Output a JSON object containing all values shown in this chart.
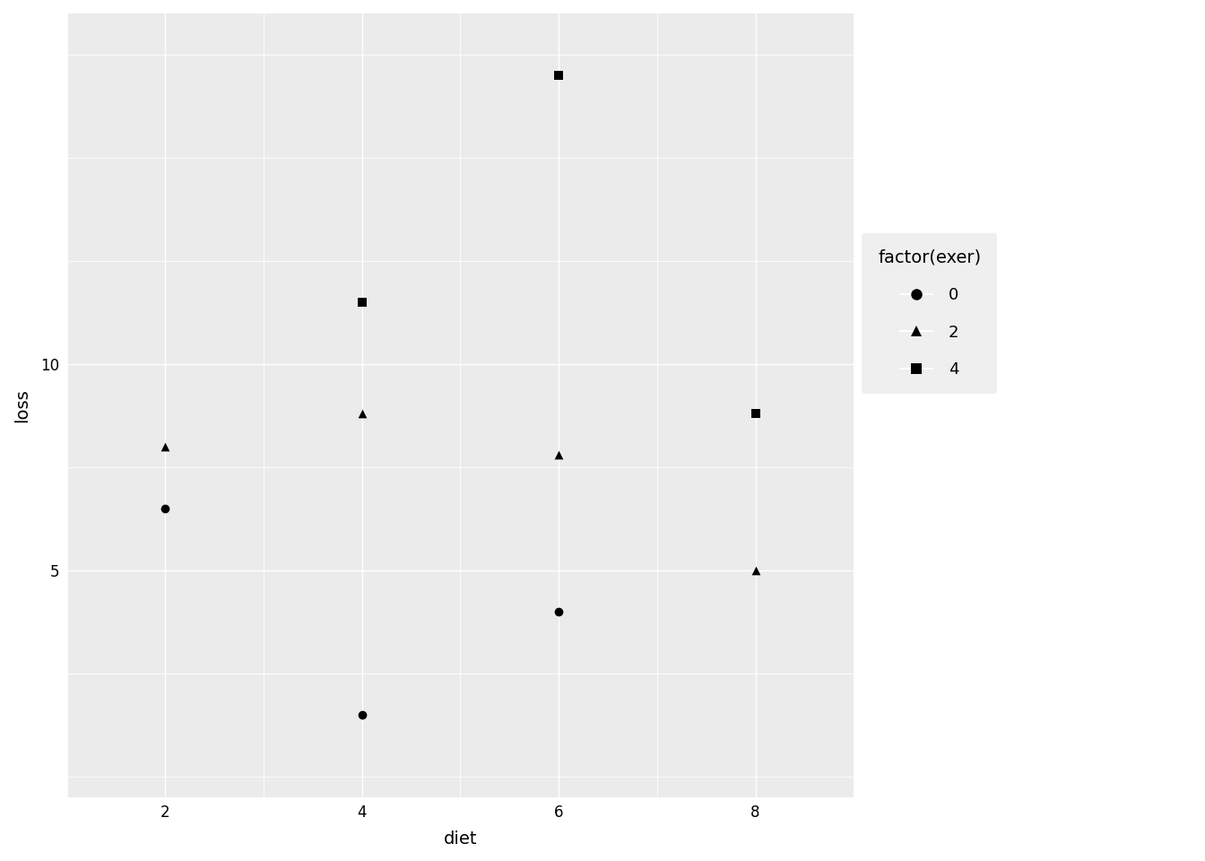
{
  "points": [
    {
      "diet": 2,
      "loss": 6.5,
      "exer": 0,
      "marker": "o"
    },
    {
      "diet": 2,
      "loss": 8.0,
      "exer": 2,
      "marker": "^"
    },
    {
      "diet": 4,
      "loss": 1.5,
      "exer": 0,
      "marker": "o"
    },
    {
      "diet": 4,
      "loss": 8.8,
      "exer": 2,
      "marker": "^"
    },
    {
      "diet": 4,
      "loss": 11.5,
      "exer": 4,
      "marker": "s"
    },
    {
      "diet": 6,
      "loss": 4.0,
      "exer": 0,
      "marker": "o"
    },
    {
      "diet": 6,
      "loss": 7.8,
      "exer": 2,
      "marker": "^"
    },
    {
      "diet": 6,
      "loss": 17.0,
      "exer": 4,
      "marker": "s"
    },
    {
      "diet": 8,
      "loss": 5.0,
      "exer": 2,
      "marker": "^"
    },
    {
      "diet": 8,
      "loss": 8.8,
      "exer": 4,
      "marker": "s"
    }
  ],
  "xlabel": "diet",
  "ylabel": "loss",
  "legend_title": "factor(exer)",
  "legend_labels": [
    "0",
    "2",
    "4"
  ],
  "legend_markers": [
    "o",
    "^",
    "s"
  ],
  "bg_color": "#EBEBEB",
  "grid_color": "#FFFFFF",
  "point_color": "#000000",
  "marker_size": 7,
  "xlim": [
    1,
    9
  ],
  "ylim": [
    -0.5,
    18.5
  ],
  "xticks": [
    2,
    4,
    6,
    8
  ],
  "yticks": [
    5,
    10
  ],
  "grid_yticks": [
    0,
    2.5,
    5,
    7.5,
    10,
    12.5,
    15,
    17.5
  ],
  "grid_xticks": [
    1,
    3,
    5,
    7,
    9
  ],
  "axis_label_fontsize": 14,
  "tick_label_fontsize": 12,
  "legend_fontsize": 13,
  "legend_title_fontsize": 14,
  "legend_marker_size": 9
}
